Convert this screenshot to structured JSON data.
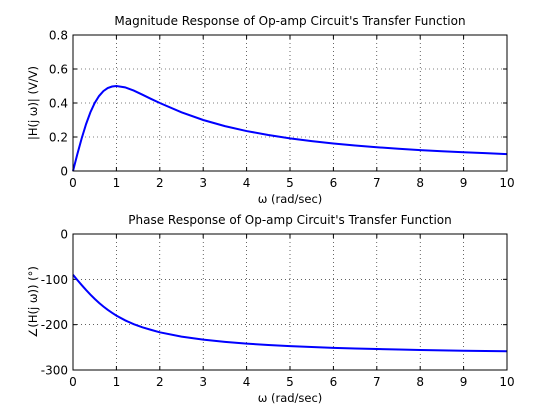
{
  "chart_data": [
    {
      "type": "line",
      "title": "Magnitude Response of Op-amp Circuit's Transfer Function",
      "xlabel": "ω (rad/sec)",
      "ylabel": "|H(j ω)| (V/V)",
      "xlim": [
        0,
        10
      ],
      "ylim": [
        0,
        0.8
      ],
      "xticks": [
        0,
        1,
        2,
        3,
        4,
        5,
        6,
        7,
        8,
        9,
        10
      ],
      "yticks": [
        0,
        0.2,
        0.4,
        0.6,
        0.8
      ],
      "xtick_labels": [
        "0",
        "1",
        "2",
        "3",
        "4",
        "5",
        "6",
        "7",
        "8",
        "9",
        "10"
      ],
      "ytick_labels": [
        "0",
        "0.2",
        "0.4",
        "0.6",
        "0.8"
      ],
      "grid": true,
      "color": "#0000ff",
      "series": [
        {
          "x": [
            0,
            0.1,
            0.2,
            0.3,
            0.4,
            0.5,
            0.6,
            0.7,
            0.8,
            0.9,
            1.0,
            1.2,
            1.4,
            1.6,
            1.8,
            2.0,
            2.5,
            3.0,
            3.5,
            4.0,
            4.5,
            5.0,
            5.5,
            6.0,
            6.5,
            7.0,
            7.5,
            8.0,
            8.5,
            9.0,
            9.5,
            10.0
          ],
          "values": [
            0,
            0.099,
            0.192,
            0.275,
            0.345,
            0.4,
            0.441,
            0.47,
            0.488,
            0.497,
            0.5,
            0.492,
            0.473,
            0.449,
            0.424,
            0.4,
            0.345,
            0.3,
            0.264,
            0.235,
            0.212,
            0.192,
            0.176,
            0.162,
            0.15,
            0.14,
            0.131,
            0.123,
            0.116,
            0.11,
            0.105,
            0.099
          ]
        }
      ]
    },
    {
      "type": "line",
      "title": "Phase Response of Op-amp Circuit's Transfer Function",
      "xlabel": "ω (rad/sec)",
      "ylabel": "∠(H(j ω)) (°)",
      "xlim": [
        0,
        10
      ],
      "ylim": [
        -300,
        0
      ],
      "xticks": [
        0,
        1,
        2,
        3,
        4,
        5,
        6,
        7,
        8,
        9,
        10
      ],
      "yticks": [
        -300,
        -200,
        -100,
        0
      ],
      "xtick_labels": [
        "0",
        "1",
        "2",
        "3",
        "4",
        "5",
        "6",
        "7",
        "8",
        "9",
        "10"
      ],
      "ytick_labels": [
        "-300",
        "-200",
        "-100",
        "0"
      ],
      "grid": true,
      "color": "#0000ff",
      "series": [
        {
          "x": [
            0,
            0.1,
            0.2,
            0.3,
            0.4,
            0.5,
            0.6,
            0.7,
            0.8,
            0.9,
            1.0,
            1.2,
            1.4,
            1.6,
            1.8,
            2.0,
            2.5,
            3.0,
            3.5,
            4.0,
            4.5,
            5.0,
            5.5,
            6.0,
            6.5,
            7.0,
            7.5,
            8.0,
            8.5,
            9.0,
            9.5,
            10.0
          ],
          "values": [
            -90,
            -101.4,
            -112.6,
            -123.4,
            -133.6,
            -143.1,
            -151.9,
            -159.9,
            -167.3,
            -173.9,
            -180.0,
            -190.4,
            -198.9,
            -205.8,
            -211.5,
            -216.9,
            -226.4,
            -233.1,
            -238.0,
            -241.9,
            -244.8,
            -247.4,
            -249.4,
            -251.1,
            -252.6,
            -253.8,
            -254.9,
            -255.8,
            -256.6,
            -257.4,
            -258.0,
            -258.6
          ]
        }
      ]
    }
  ]
}
